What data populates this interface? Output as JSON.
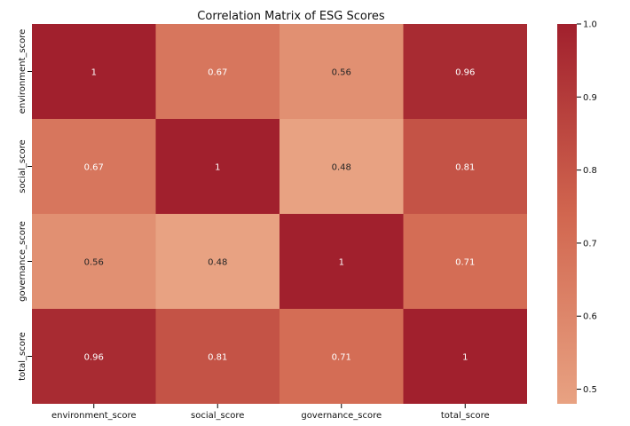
{
  "chart_data": {
    "type": "heatmap",
    "title": "Correlation Matrix of ESG Scores",
    "x_categories": [
      "environment_score",
      "social_score",
      "governance_score",
      "total_score"
    ],
    "y_categories": [
      "environment_score",
      "social_score",
      "governance_score",
      "total_score"
    ],
    "values": [
      [
        1.0,
        0.67,
        0.56,
        0.96
      ],
      [
        0.67,
        1.0,
        0.48,
        0.81
      ],
      [
        0.56,
        0.48,
        1.0,
        0.71
      ],
      [
        0.96,
        0.81,
        0.71,
        1.0
      ]
    ],
    "value_labels": [
      [
        "1",
        "0.67",
        "0.56",
        "0.96"
      ],
      [
        "0.67",
        "1",
        "0.48",
        "0.81"
      ],
      [
        "0.56",
        "0.48",
        "1",
        "0.71"
      ],
      [
        "0.96",
        "0.81",
        "0.71",
        "1"
      ]
    ],
    "color_range": [
      0.48,
      1.0
    ],
    "colorbar_ticks": [
      0.5,
      0.6,
      0.7,
      0.8,
      0.9,
      1.0
    ],
    "colorbar_tick_labels": [
      "0.5",
      "0.6",
      "0.7",
      "0.8",
      "0.9",
      "1.0"
    ],
    "colormap": "coolwarm-red-range",
    "colors": {
      "low": "#e8a282",
      "mid": "#d1664f",
      "high": "#a1202d",
      "text_dark": "#262626",
      "text_light": "#ffffff",
      "tick": "#000000"
    }
  }
}
